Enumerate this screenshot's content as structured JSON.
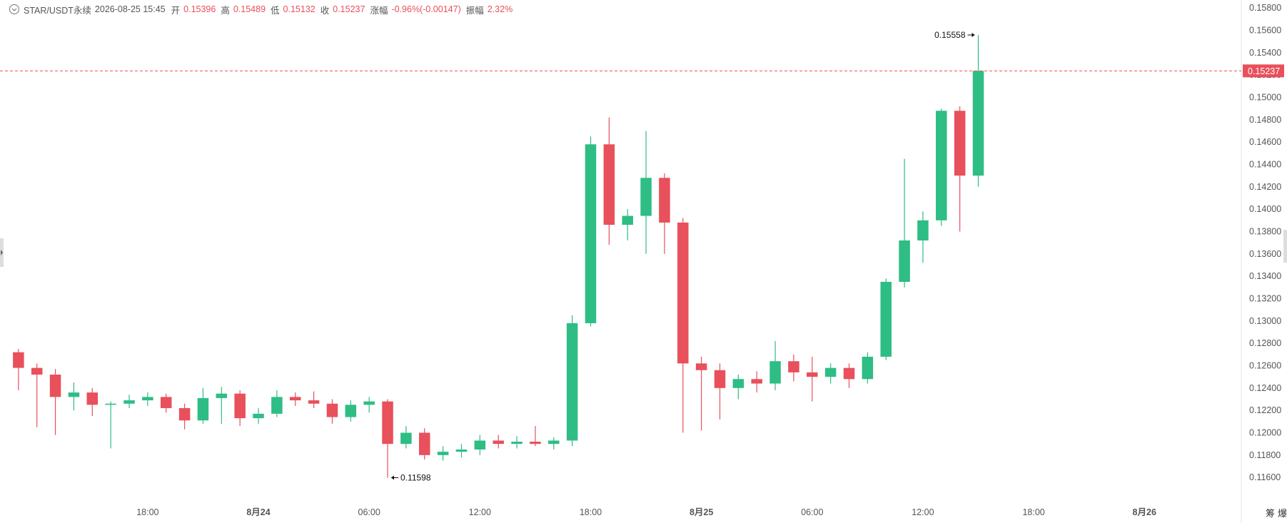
{
  "chart_data": {
    "type": "candlestick",
    "header": {
      "symbol": "STAR/USDT永续",
      "time": "2026-08-25 15:45",
      "open_label": "开",
      "open": 0.15396,
      "high_label": "高",
      "high": 0.15489,
      "low_label": "低",
      "low": 0.15132,
      "close_label": "收",
      "close": 0.15237,
      "change_label": "涨幅",
      "change": "-0.96%(-0.00147)",
      "amplitude_label": "振幅",
      "amplitude": "2.32%"
    },
    "up_color": "#2ebd85",
    "down_color": "#e8505b",
    "x": [
      "2026-08-23 11:00",
      "2026-08-23 12:00",
      "2026-08-23 13:00",
      "2026-08-23 14:00",
      "2026-08-23 15:00",
      "2026-08-23 16:00",
      "2026-08-23 17:00",
      "2026-08-23 18:00",
      "2026-08-23 19:00",
      "2026-08-23 20:00",
      "2026-08-23 21:00",
      "2026-08-23 22:00",
      "2026-08-23 23:00",
      "2026-08-24 00:00",
      "2026-08-24 01:00",
      "2026-08-24 02:00",
      "2026-08-24 03:00",
      "2026-08-24 04:00",
      "2026-08-24 05:00",
      "2026-08-24 06:00",
      "2026-08-24 07:00",
      "2026-08-24 08:00",
      "2026-08-24 09:00",
      "2026-08-24 10:00",
      "2026-08-24 11:00",
      "2026-08-24 12:00",
      "2026-08-24 13:00",
      "2026-08-24 14:00",
      "2026-08-24 15:00",
      "2026-08-24 16:00",
      "2026-08-24 17:00",
      "2026-08-24 18:00",
      "2026-08-24 19:00",
      "2026-08-24 20:00",
      "2026-08-24 21:00",
      "2026-08-24 22:00",
      "2026-08-24 23:00",
      "2026-08-25 00:00",
      "2026-08-25 01:00",
      "2026-08-25 02:00",
      "2026-08-25 03:00",
      "2026-08-25 04:00",
      "2026-08-25 05:00",
      "2026-08-25 06:00",
      "2026-08-25 07:00",
      "2026-08-25 08:00",
      "2026-08-25 09:00",
      "2026-08-25 10:00",
      "2026-08-25 11:00",
      "2026-08-25 12:00",
      "2026-08-25 13:00",
      "2026-08-25 14:00",
      "2026-08-25 15:00"
    ],
    "ohlc": [
      [
        0.1272,
        0.1275,
        0.1238,
        0.1258
      ],
      [
        0.1258,
        0.1262,
        0.1205,
        0.1252
      ],
      [
        0.1252,
        0.1257,
        0.1198,
        0.1232
      ],
      [
        0.1232,
        0.1245,
        0.122,
        0.1236
      ],
      [
        0.1236,
        0.124,
        0.1215,
        0.1225
      ],
      [
        0.1225,
        0.1228,
        0.1186,
        0.1226
      ],
      [
        0.1226,
        0.1234,
        0.1222,
        0.1229
      ],
      [
        0.1229,
        0.1236,
        0.1224,
        0.1232
      ],
      [
        0.1232,
        0.1235,
        0.1218,
        0.1222
      ],
      [
        0.1222,
        0.1226,
        0.1203,
        0.1211
      ],
      [
        0.1211,
        0.124,
        0.1208,
        0.1231
      ],
      [
        0.1231,
        0.1241,
        0.1208,
        0.1235
      ],
      [
        0.1235,
        0.1238,
        0.1206,
        0.1213
      ],
      [
        0.1213,
        0.1222,
        0.1208,
        0.1217
      ],
      [
        0.1217,
        0.1238,
        0.1214,
        0.1232
      ],
      [
        0.1232,
        0.1236,
        0.1224,
        0.1229
      ],
      [
        0.1229,
        0.1237,
        0.1222,
        0.1226
      ],
      [
        0.1226,
        0.123,
        0.1208,
        0.1214
      ],
      [
        0.1214,
        0.1229,
        0.121,
        0.1225
      ],
      [
        0.1225,
        0.1232,
        0.1218,
        0.1228
      ],
      [
        0.1228,
        0.123,
        0.11598,
        0.119
      ],
      [
        0.119,
        0.1206,
        0.1186,
        0.12
      ],
      [
        0.12,
        0.1204,
        0.1176,
        0.118
      ],
      [
        0.118,
        0.1188,
        0.1175,
        0.1183
      ],
      [
        0.1183,
        0.119,
        0.1178,
        0.1185
      ],
      [
        0.1185,
        0.1198,
        0.118,
        0.1193
      ],
      [
        0.1193,
        0.1198,
        0.1186,
        0.119
      ],
      [
        0.119,
        0.1197,
        0.1186,
        0.1192
      ],
      [
        0.1192,
        0.1206,
        0.1188,
        0.119
      ],
      [
        0.119,
        0.1196,
        0.1185,
        0.1193
      ],
      [
        0.1193,
        0.1305,
        0.1188,
        0.1298
      ],
      [
        0.1298,
        0.1465,
        0.1295,
        0.1458
      ],
      [
        0.1458,
        0.1482,
        0.1368,
        0.1386
      ],
      [
        0.1386,
        0.14,
        0.1372,
        0.1394
      ],
      [
        0.1394,
        0.147,
        0.136,
        0.1428
      ],
      [
        0.1428,
        0.1432,
        0.136,
        0.1388
      ],
      [
        0.1388,
        0.1392,
        0.12,
        0.1262
      ],
      [
        0.1262,
        0.1268,
        0.1202,
        0.1256
      ],
      [
        0.1256,
        0.1262,
        0.1212,
        0.124
      ],
      [
        0.124,
        0.1252,
        0.123,
        0.1248
      ],
      [
        0.1248,
        0.1255,
        0.1236,
        0.1244
      ],
      [
        0.1244,
        0.1282,
        0.1238,
        0.1264
      ],
      [
        0.1264,
        0.127,
        0.1246,
        0.1254
      ],
      [
        0.1254,
        0.1268,
        0.1228,
        0.125
      ],
      [
        0.125,
        0.1262,
        0.1244,
        0.1258
      ],
      [
        0.1258,
        0.1262,
        0.124,
        0.1248
      ],
      [
        0.1248,
        0.1272,
        0.1244,
        0.1268
      ],
      [
        0.1268,
        0.1338,
        0.1265,
        0.1335
      ],
      [
        0.1335,
        0.1445,
        0.133,
        0.1372
      ],
      [
        0.1372,
        0.1398,
        0.1352,
        0.139
      ],
      [
        0.139,
        0.149,
        0.1385,
        0.1488
      ],
      [
        0.1488,
        0.1492,
        0.138,
        0.143
      ],
      [
        0.143,
        0.15558,
        0.142,
        0.15237
      ]
    ],
    "xlim": [
      "2026-08-23 10:00",
      "2026-08-26 05:15"
    ],
    "xticks": [
      {
        "value": "2026-08-23 18:00",
        "label": "18:00"
      },
      {
        "value": "2026-08-24 00:00",
        "label": "8月24"
      },
      {
        "value": "2026-08-24 06:00",
        "label": "06:00"
      },
      {
        "value": "2026-08-24 12:00",
        "label": "12:00"
      },
      {
        "value": "2026-08-24 18:00",
        "label": "18:00"
      },
      {
        "value": "2026-08-25 00:00",
        "label": "8月25"
      },
      {
        "value": "2026-08-25 06:00",
        "label": "06:00"
      },
      {
        "value": "2026-08-25 12:00",
        "label": "12:00"
      },
      {
        "value": "2026-08-25 18:00",
        "label": "18:00"
      },
      {
        "value": "2026-08-26 00:00",
        "label": "8月26"
      }
    ],
    "ylim": [
      0.1155,
      0.1582
    ],
    "yticks": [
      {
        "value": 0.158,
        "label": "0.15800"
      },
      {
        "value": 0.156,
        "label": "0.15600"
      },
      {
        "value": 0.154,
        "label": "0.15400"
      },
      {
        "value": 0.152,
        "label": "0.15200"
      },
      {
        "value": 0.15,
        "label": "0.15000"
      },
      {
        "value": 0.148,
        "label": "0.14800"
      },
      {
        "value": 0.146,
        "label": "0.14600"
      },
      {
        "value": 0.144,
        "label": "0.14400"
      },
      {
        "value": 0.142,
        "label": "0.14200"
      },
      {
        "value": 0.14,
        "label": "0.14000"
      },
      {
        "value": 0.138,
        "label": "0.13800"
      },
      {
        "value": 0.136,
        "label": "0.13600"
      },
      {
        "value": 0.134,
        "label": "0.13400"
      },
      {
        "value": 0.132,
        "label": "0.13200"
      },
      {
        "value": 0.13,
        "label": "0.13000"
      },
      {
        "value": 0.128,
        "label": "0.12800"
      },
      {
        "value": 0.126,
        "label": "0.12600"
      },
      {
        "value": 0.124,
        "label": "0.12400"
      },
      {
        "value": 0.122,
        "label": "0.12200"
      },
      {
        "value": 0.12,
        "label": "0.12000"
      },
      {
        "value": 0.118,
        "label": "0.11800"
      },
      {
        "value": 0.116,
        "label": "0.11600"
      }
    ],
    "grid": false,
    "last_price": 0.15237,
    "max_label": 0.15558,
    "min_label": 0.11598,
    "tools": [
      "筹",
      "爆"
    ]
  }
}
